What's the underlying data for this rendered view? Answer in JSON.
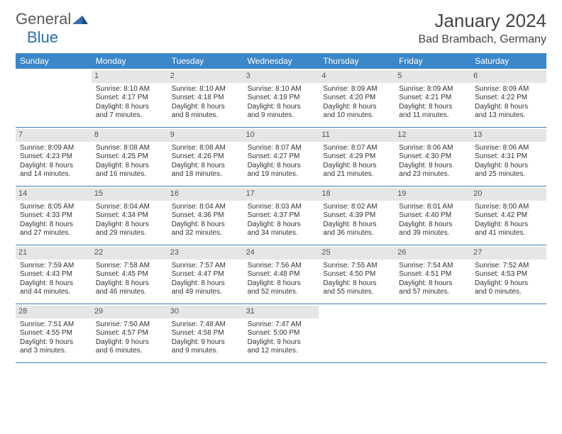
{
  "brand": {
    "part1": "General",
    "part2": "Blue"
  },
  "title": "January 2024",
  "location": "Bad Brambach, Germany",
  "colors": {
    "header_bg": "#3b87c8",
    "header_text": "#ffffff",
    "daynum_bg": "#e6e6e6",
    "border": "#3b7bb8",
    "brand_gray": "#5a5a5a",
    "brand_blue": "#2f6fb3"
  },
  "weekdays": [
    "Sunday",
    "Monday",
    "Tuesday",
    "Wednesday",
    "Thursday",
    "Friday",
    "Saturday"
  ],
  "weeks": [
    [
      {
        "empty": true
      },
      {
        "n": "1",
        "sr": "Sunrise: 8:10 AM",
        "ss": "Sunset: 4:17 PM",
        "d1": "Daylight: 8 hours",
        "d2": "and 7 minutes."
      },
      {
        "n": "2",
        "sr": "Sunrise: 8:10 AM",
        "ss": "Sunset: 4:18 PM",
        "d1": "Daylight: 8 hours",
        "d2": "and 8 minutes."
      },
      {
        "n": "3",
        "sr": "Sunrise: 8:10 AM",
        "ss": "Sunset: 4:19 PM",
        "d1": "Daylight: 8 hours",
        "d2": "and 9 minutes."
      },
      {
        "n": "4",
        "sr": "Sunrise: 8:09 AM",
        "ss": "Sunset: 4:20 PM",
        "d1": "Daylight: 8 hours",
        "d2": "and 10 minutes."
      },
      {
        "n": "5",
        "sr": "Sunrise: 8:09 AM",
        "ss": "Sunset: 4:21 PM",
        "d1": "Daylight: 8 hours",
        "d2": "and 11 minutes."
      },
      {
        "n": "6",
        "sr": "Sunrise: 8:09 AM",
        "ss": "Sunset: 4:22 PM",
        "d1": "Daylight: 8 hours",
        "d2": "and 13 minutes."
      }
    ],
    [
      {
        "n": "7",
        "sr": "Sunrise: 8:09 AM",
        "ss": "Sunset: 4:23 PM",
        "d1": "Daylight: 8 hours",
        "d2": "and 14 minutes."
      },
      {
        "n": "8",
        "sr": "Sunrise: 8:08 AM",
        "ss": "Sunset: 4:25 PM",
        "d1": "Daylight: 8 hours",
        "d2": "and 16 minutes."
      },
      {
        "n": "9",
        "sr": "Sunrise: 8:08 AM",
        "ss": "Sunset: 4:26 PM",
        "d1": "Daylight: 8 hours",
        "d2": "and 18 minutes."
      },
      {
        "n": "10",
        "sr": "Sunrise: 8:07 AM",
        "ss": "Sunset: 4:27 PM",
        "d1": "Daylight: 8 hours",
        "d2": "and 19 minutes."
      },
      {
        "n": "11",
        "sr": "Sunrise: 8:07 AM",
        "ss": "Sunset: 4:29 PM",
        "d1": "Daylight: 8 hours",
        "d2": "and 21 minutes."
      },
      {
        "n": "12",
        "sr": "Sunrise: 8:06 AM",
        "ss": "Sunset: 4:30 PM",
        "d1": "Daylight: 8 hours",
        "d2": "and 23 minutes."
      },
      {
        "n": "13",
        "sr": "Sunrise: 8:06 AM",
        "ss": "Sunset: 4:31 PM",
        "d1": "Daylight: 8 hours",
        "d2": "and 25 minutes."
      }
    ],
    [
      {
        "n": "14",
        "sr": "Sunrise: 8:05 AM",
        "ss": "Sunset: 4:33 PM",
        "d1": "Daylight: 8 hours",
        "d2": "and 27 minutes."
      },
      {
        "n": "15",
        "sr": "Sunrise: 8:04 AM",
        "ss": "Sunset: 4:34 PM",
        "d1": "Daylight: 8 hours",
        "d2": "and 29 minutes."
      },
      {
        "n": "16",
        "sr": "Sunrise: 8:04 AM",
        "ss": "Sunset: 4:36 PM",
        "d1": "Daylight: 8 hours",
        "d2": "and 32 minutes."
      },
      {
        "n": "17",
        "sr": "Sunrise: 8:03 AM",
        "ss": "Sunset: 4:37 PM",
        "d1": "Daylight: 8 hours",
        "d2": "and 34 minutes."
      },
      {
        "n": "18",
        "sr": "Sunrise: 8:02 AM",
        "ss": "Sunset: 4:39 PM",
        "d1": "Daylight: 8 hours",
        "d2": "and 36 minutes."
      },
      {
        "n": "19",
        "sr": "Sunrise: 8:01 AM",
        "ss": "Sunset: 4:40 PM",
        "d1": "Daylight: 8 hours",
        "d2": "and 39 minutes."
      },
      {
        "n": "20",
        "sr": "Sunrise: 8:00 AM",
        "ss": "Sunset: 4:42 PM",
        "d1": "Daylight: 8 hours",
        "d2": "and 41 minutes."
      }
    ],
    [
      {
        "n": "21",
        "sr": "Sunrise: 7:59 AM",
        "ss": "Sunset: 4:43 PM",
        "d1": "Daylight: 8 hours",
        "d2": "and 44 minutes."
      },
      {
        "n": "22",
        "sr": "Sunrise: 7:58 AM",
        "ss": "Sunset: 4:45 PM",
        "d1": "Daylight: 8 hours",
        "d2": "and 46 minutes."
      },
      {
        "n": "23",
        "sr": "Sunrise: 7:57 AM",
        "ss": "Sunset: 4:47 PM",
        "d1": "Daylight: 8 hours",
        "d2": "and 49 minutes."
      },
      {
        "n": "24",
        "sr": "Sunrise: 7:56 AM",
        "ss": "Sunset: 4:48 PM",
        "d1": "Daylight: 8 hours",
        "d2": "and 52 minutes."
      },
      {
        "n": "25",
        "sr": "Sunrise: 7:55 AM",
        "ss": "Sunset: 4:50 PM",
        "d1": "Daylight: 8 hours",
        "d2": "and 55 minutes."
      },
      {
        "n": "26",
        "sr": "Sunrise: 7:54 AM",
        "ss": "Sunset: 4:51 PM",
        "d1": "Daylight: 8 hours",
        "d2": "and 57 minutes."
      },
      {
        "n": "27",
        "sr": "Sunrise: 7:52 AM",
        "ss": "Sunset: 4:53 PM",
        "d1": "Daylight: 9 hours",
        "d2": "and 0 minutes."
      }
    ],
    [
      {
        "n": "28",
        "sr": "Sunrise: 7:51 AM",
        "ss": "Sunset: 4:55 PM",
        "d1": "Daylight: 9 hours",
        "d2": "and 3 minutes."
      },
      {
        "n": "29",
        "sr": "Sunrise: 7:50 AM",
        "ss": "Sunset: 4:57 PM",
        "d1": "Daylight: 9 hours",
        "d2": "and 6 minutes."
      },
      {
        "n": "30",
        "sr": "Sunrise: 7:48 AM",
        "ss": "Sunset: 4:58 PM",
        "d1": "Daylight: 9 hours",
        "d2": "and 9 minutes."
      },
      {
        "n": "31",
        "sr": "Sunrise: 7:47 AM",
        "ss": "Sunset: 5:00 PM",
        "d1": "Daylight: 9 hours",
        "d2": "and 12 minutes."
      },
      {
        "empty": true
      },
      {
        "empty": true
      },
      {
        "empty": true
      }
    ]
  ]
}
